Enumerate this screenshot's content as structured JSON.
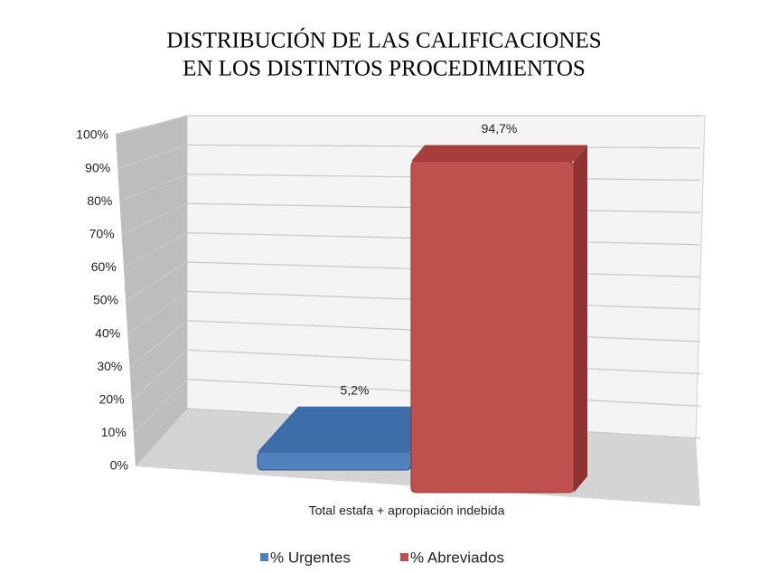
{
  "chart_data": {
    "type": "bar3d",
    "title": [
      "DISTRIBUCIÓN DE LAS CALIFICACIONES",
      "EN LOS DISTINTOS PROCEDIMIENTOS"
    ],
    "categories": [
      "Total estafa + apropiación indebida"
    ],
    "series": [
      {
        "name": "% Urgentes",
        "color": "#4f81bd",
        "values": [
          5.2
        ],
        "value_labels": [
          "5,2%"
        ]
      },
      {
        "name": "% Abreviados",
        "color": "#c0504d",
        "values": [
          94.7
        ],
        "value_labels": [
          "94,7%"
        ]
      }
    ],
    "ylim": [
      0,
      100
    ],
    "yticks": [
      {
        "value": 0,
        "label": "0%"
      },
      {
        "value": 10,
        "label": "10%"
      },
      {
        "value": 20,
        "label": "20%"
      },
      {
        "value": 30,
        "label": "30%"
      },
      {
        "value": 40,
        "label": "40%"
      },
      {
        "value": 50,
        "label": "50%"
      },
      {
        "value": 60,
        "label": "60%"
      },
      {
        "value": 70,
        "label": "70%"
      },
      {
        "value": 80,
        "label": "80%"
      },
      {
        "value": 90,
        "label": "90%"
      },
      {
        "value": 100,
        "label": "100%"
      }
    ],
    "grid": true,
    "legend": "bottom"
  }
}
